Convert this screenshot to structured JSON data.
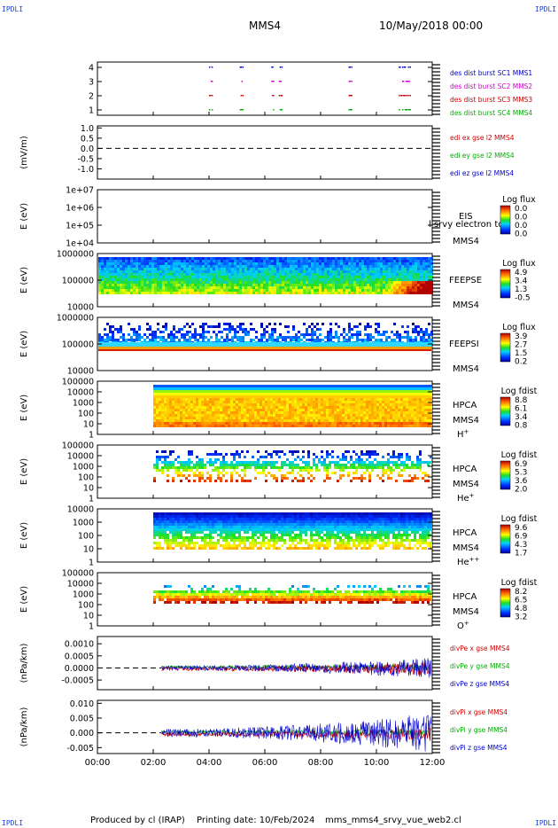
{
  "header": {
    "spacecraft": "MMS4",
    "date": "10/May/2018 00:00",
    "corner_label": "IPDLI"
  },
  "footer": {
    "produced_by": "Produced by cl (IRAP)",
    "printing_date": "Printing date: 10/Feb/2024",
    "filename": "mms_mms4_srvy_vue_web2.cl"
  },
  "x_axis": {
    "ticks": [
      "00:00",
      "02:00",
      "04:00",
      "06:00",
      "08:00",
      "10:00",
      "12:00"
    ],
    "range_hours": [
      0,
      12
    ]
  },
  "chart_data": [
    {
      "type": "scatter",
      "ylim": [
        0.5,
        4.5
      ],
      "yticks": [
        "1",
        "2",
        "3",
        "4"
      ],
      "legend": [
        {
          "label": "des dist burst SC1 MMS1",
          "color": "#0000c8"
        },
        {
          "label": "des dist burst SC2 MMS2",
          "color": "#d000d0"
        },
        {
          "label": "des dist burst SC3 MMS3",
          "color": "#d00000"
        },
        {
          "label": "des dist burst SC4 MMS4",
          "color": "#00b000"
        }
      ],
      "bursts_hours": [
        [
          4.0,
          4.1
        ],
        [
          5.1,
          5.2
        ],
        [
          6.2,
          6.3
        ],
        [
          6.5,
          6.6
        ],
        [
          9.0,
          9.1
        ],
        [
          10.8,
          11.2
        ]
      ]
    },
    {
      "type": "line",
      "ylabel": "(mV/m)",
      "ylim": [
        -1.5,
        1.1
      ],
      "yticks": [
        "1.0",
        "0.5",
        "0.0",
        "-0.5",
        "-1.0"
      ],
      "legend": [
        {
          "label": "edi ex gse l2 MMS4",
          "color": "#d00000"
        },
        {
          "label": "edi ey gse l2 MMS4",
          "color": "#00b000"
        },
        {
          "label": "edi ez gse l2 MMS4",
          "color": "#0000c8"
        }
      ]
    },
    {
      "type": "heatmap",
      "ylabel": "E (eV)",
      "yticks": [
        "1e+07",
        "1e+06",
        "1e+05",
        "1e+04"
      ],
      "instrument": [
        "EIS",
        "MMS4"
      ],
      "overlay_text": "l srvy electron to",
      "colorbar_title": "Log flux",
      "colorbar_ticks": [
        "0.0",
        "0.0",
        "0.0",
        "0.0"
      ]
    },
    {
      "type": "heatmap",
      "ylabel": "E (eV)",
      "yticks": [
        "1000000",
        "100000",
        "10000"
      ],
      "instrument": [
        "FEEPSE",
        "MMS4"
      ],
      "colorbar_title": "Log flux",
      "colorbar_ticks": [
        "4.9",
        "3.4",
        "1.3",
        "-0.5"
      ]
    },
    {
      "type": "heatmap",
      "ylabel": "E (eV)",
      "yticks": [
        "1000000",
        "100000",
        "10000"
      ],
      "instrument": [
        "FEEPSI",
        "MMS4"
      ],
      "colorbar_title": "Log flux",
      "colorbar_ticks": [
        "3.9",
        "2.7",
        "1.5",
        "0.2"
      ]
    },
    {
      "type": "heatmap",
      "ylabel": "E (eV)",
      "yticks": [
        "100000",
        "10000",
        "1000",
        "100",
        "10",
        "1"
      ],
      "instrument": [
        "HPCA",
        "MMS4",
        "H+"
      ],
      "colorbar_title": "Log fdist",
      "colorbar_ticks": [
        "8.8",
        "6.1",
        "3.4",
        "0.8"
      ]
    },
    {
      "type": "heatmap",
      "ylabel": "E (eV)",
      "yticks": [
        "100000",
        "10000",
        "1000",
        "100",
        "10",
        "1"
      ],
      "instrument": [
        "HPCA",
        "MMS4",
        "He+"
      ],
      "colorbar_title": "Log fdist",
      "colorbar_ticks": [
        "6.9",
        "5.3",
        "3.6",
        "2.0"
      ]
    },
    {
      "type": "heatmap",
      "ylabel": "E (eV)",
      "yticks": [
        "10000",
        "1000",
        "100",
        "10",
        "1"
      ],
      "instrument": [
        "HPCA",
        "MMS4",
        "He++"
      ],
      "colorbar_title": "Log fdist",
      "colorbar_ticks": [
        "9.6",
        "6.9",
        "4.3",
        "1.7"
      ]
    },
    {
      "type": "heatmap",
      "ylabel": "E (eV)",
      "yticks": [
        "100000",
        "10000",
        "1000",
        "100",
        "10",
        "1"
      ],
      "instrument": [
        "HPCA",
        "MMS4",
        "O+"
      ],
      "colorbar_title": "Log fdist",
      "colorbar_ticks": [
        "8.2",
        "6.5",
        "4.8",
        "3.2"
      ]
    },
    {
      "type": "line",
      "ylabel": "(nPa/km)",
      "ylim": [
        -0.0009,
        0.0013
      ],
      "yticks": [
        "0.0010",
        "0.0005",
        "0.0000",
        "-0.0005"
      ],
      "legend": [
        {
          "label": "divPe x gse MMS4",
          "color": "#d00000"
        },
        {
          "label": "divPe y gse MMS4",
          "color": "#00b000"
        },
        {
          "label": "divPe z gse MMS4",
          "color": "#0000c8"
        }
      ]
    },
    {
      "type": "line",
      "ylabel": "(nPa/km)",
      "ylim": [
        -0.007,
        0.011
      ],
      "yticks": [
        "0.010",
        "0.005",
        "0.000",
        "-0.005"
      ],
      "legend": [
        {
          "label": "divPi x gse MMS4",
          "color": "#d00000"
        },
        {
          "label": "divPi y gse MMS4",
          "color": "#00b000"
        },
        {
          "label": "divPi z gse MMS4",
          "color": "#0000c8"
        }
      ]
    }
  ]
}
